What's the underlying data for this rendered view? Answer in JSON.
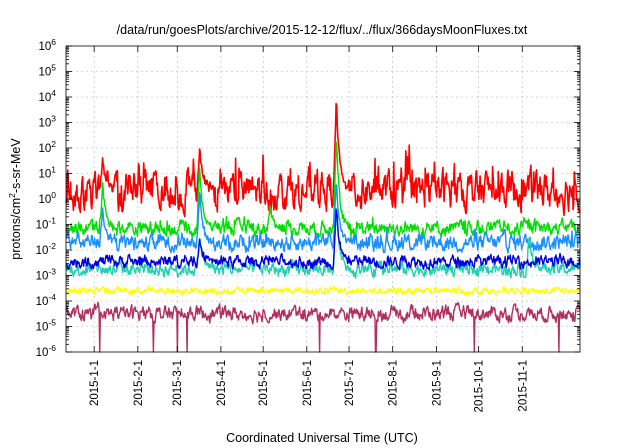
{
  "chart_data": {
    "type": "line",
    "title": "/data/run/goesPlots/archive/2015-12-12/flux/../flux/366daysMoonFluxes.txt",
    "xlabel": "Coordinated Universal Time (UTC)",
    "ylabel_parts": [
      "protons/cm",
      "2",
      "-s-sr-MeV"
    ],
    "x_range": [
      "2014-12-12",
      "2015-12-12"
    ],
    "x_ticks": [
      "2015-1-1",
      "2015-2-1",
      "2015-3-1",
      "2015-4-1",
      "2015-5-1",
      "2015-6-1",
      "2015-7-1",
      "2015-8-1",
      "2015-9-1",
      "2015-10-1",
      "2015-11-1"
    ],
    "y_scale": "log",
    "ylim": [
      1e-06,
      1000000.0
    ],
    "y_ticks": [
      {
        "base": "10",
        "exp": "-6"
      },
      {
        "base": "10",
        "exp": "-5"
      },
      {
        "base": "10",
        "exp": "-4"
      },
      {
        "base": "10",
        "exp": "-3"
      },
      {
        "base": "10",
        "exp": "-2"
      },
      {
        "base": "10",
        "exp": "-1"
      },
      {
        "base": "10",
        "exp": "0"
      },
      {
        "base": "10",
        "exp": "1"
      },
      {
        "base": "10",
        "exp": "2"
      },
      {
        "base": "10",
        "exp": "3"
      },
      {
        "base": "10",
        "exp": "4"
      },
      {
        "base": "10",
        "exp": "5"
      },
      {
        "base": "10",
        "exp": "6"
      }
    ],
    "grid": true,
    "legend": "none",
    "series": [
      {
        "color": "#ff0000",
        "baseline_log10": 0.35,
        "noise_log10": 0.55,
        "spike_log10": 1.0,
        "events": [
          {
            "date": "2015-06-22",
            "peak_log10": 3.9
          },
          {
            "date": "2015-03-17",
            "peak_log10": 1.9
          },
          {
            "date": "2015-01-07",
            "peak_log10": 1.5
          }
        ]
      },
      {
        "color": "#00e000",
        "baseline_log10": -1.15,
        "noise_log10": 0.22,
        "spike_log10": 0.3,
        "events": [
          {
            "date": "2015-06-22",
            "peak_log10": 2.6
          },
          {
            "date": "2015-03-17",
            "peak_log10": 1.3
          },
          {
            "date": "2015-01-07",
            "peak_log10": 0.6
          },
          {
            "date": "2015-05-06",
            "peak_log10": -0.3
          }
        ]
      },
      {
        "color": "#1a8fff",
        "baseline_log10": -1.7,
        "noise_log10": 0.25,
        "spike_log10": 0.25,
        "events": [
          {
            "date": "2015-06-22",
            "peak_log10": 0.8
          },
          {
            "date": "2015-03-17",
            "peak_log10": 0.3
          },
          {
            "date": "2015-01-07",
            "peak_log10": -0.4
          }
        ]
      },
      {
        "color": "#20d0b0",
        "baseline_log10": -2.75,
        "noise_log10": 0.2,
        "spike_log10": 0.15,
        "events": [
          {
            "date": "2015-06-22",
            "peak_log10": -0.2
          },
          {
            "date": "2015-03-17",
            "peak_log10": -1.5
          },
          {
            "date": "2015-11-06",
            "peak_log10": -1.4
          }
        ]
      },
      {
        "color": "#0000e0",
        "baseline_log10": -2.45,
        "noise_log10": 0.18,
        "spike_log10": 0.15,
        "events": [
          {
            "date": "2015-06-22",
            "peak_log10": -0.3
          },
          {
            "date": "2015-03-17",
            "peak_log10": -1.6
          }
        ]
      },
      {
        "color": "#ffff00",
        "baseline_log10": -3.6,
        "noise_log10": 0.1,
        "spike_log10": 0.05,
        "events": []
      },
      {
        "color": "#b03060",
        "baseline_log10": -4.5,
        "noise_log10": 0.22,
        "spike_log10": 0.1,
        "events": [],
        "dropouts": [
          "2015-01-05",
          "2015-02-12",
          "2015-03-01",
          "2015-03-08",
          "2015-06-10",
          "2015-07-20",
          "2015-09-28",
          "2015-11-27"
        ]
      }
    ]
  }
}
